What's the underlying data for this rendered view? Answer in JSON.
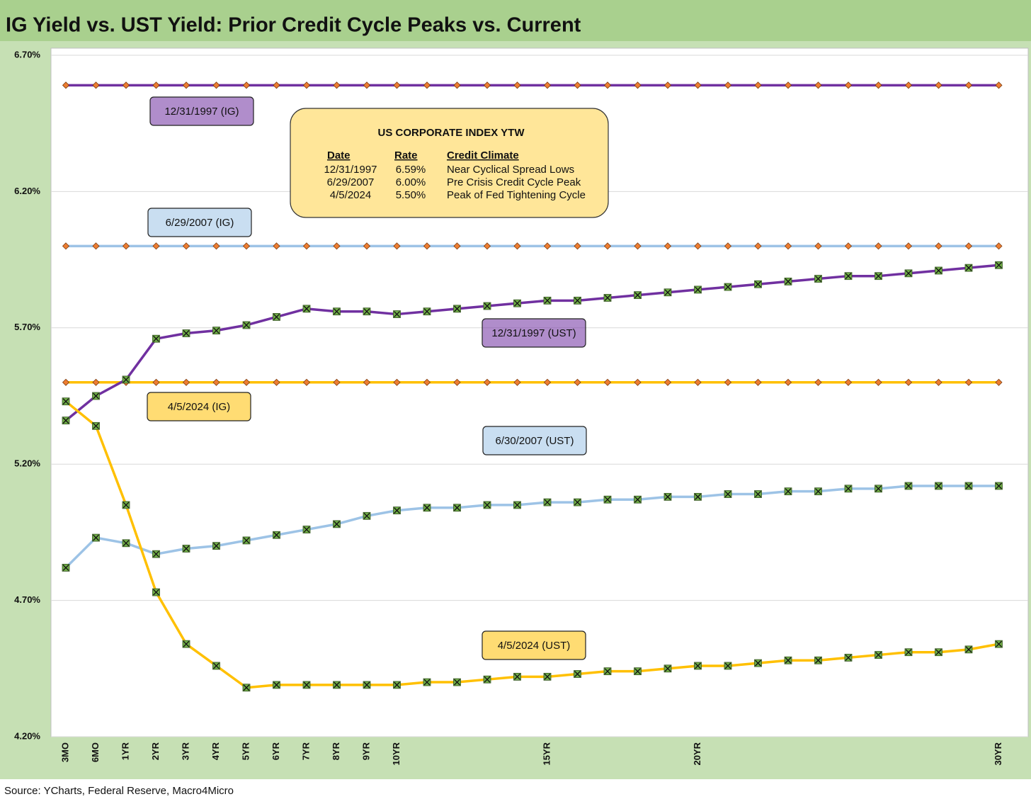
{
  "chart_data": {
    "type": "line",
    "title": "IG Yield vs. UST Yield: Prior Credit Cycle Peaks vs. Current",
    "source": "Source: YCharts, Federal Reserve, Macro4Micro",
    "categories": [
      "3MO",
      "6MO",
      "1YR",
      "2YR",
      "3YR",
      "4YR",
      "5YR",
      "6YR",
      "7YR",
      "8YR",
      "9YR",
      "10YR",
      null,
      null,
      null,
      null,
      "15YR",
      null,
      null,
      null,
      null,
      "20YR",
      null,
      null,
      null,
      null,
      null,
      null,
      null,
      null,
      null,
      "30YR"
    ],
    "ylim": [
      4.2,
      6.7
    ],
    "yticks": [
      {
        "value": 4.2,
        "label": "4.20%"
      },
      {
        "value": 4.7,
        "label": "4.70%"
      },
      {
        "value": 5.2,
        "label": "5.20%"
      },
      {
        "value": 5.7,
        "label": "5.70%"
      },
      {
        "value": 6.2,
        "label": "6.20%"
      },
      {
        "value": 6.7,
        "label": "6.70%"
      }
    ],
    "grid": true,
    "series": [
      {
        "name": "12/31/1997 (IG)",
        "color": "#7030a0",
        "marker": "diamond",
        "marker_color": "#ed7d31",
        "values": [
          6.59,
          6.59,
          6.59,
          6.59,
          6.59,
          6.59,
          6.59,
          6.59,
          6.59,
          6.59,
          6.59,
          6.59,
          6.59,
          6.59,
          6.59,
          6.59,
          6.59,
          6.59,
          6.59,
          6.59,
          6.59,
          6.59,
          6.59,
          6.59,
          6.59,
          6.59,
          6.59,
          6.59,
          6.59,
          6.59,
          6.59,
          6.59
        ]
      },
      {
        "name": "6/29/2007 (IG)",
        "color": "#9dc3e6",
        "marker": "diamond",
        "marker_color": "#ed7d31",
        "values": [
          6.0,
          6.0,
          6.0,
          6.0,
          6.0,
          6.0,
          6.0,
          6.0,
          6.0,
          6.0,
          6.0,
          6.0,
          6.0,
          6.0,
          6.0,
          6.0,
          6.0,
          6.0,
          6.0,
          6.0,
          6.0,
          6.0,
          6.0,
          6.0,
          6.0,
          6.0,
          6.0,
          6.0,
          6.0,
          6.0,
          6.0,
          6.0
        ]
      },
      {
        "name": "4/5/2024 (IG)",
        "color": "#ffc000",
        "marker": "diamond",
        "marker_color": "#ed7d31",
        "values": [
          5.5,
          5.5,
          5.5,
          5.5,
          5.5,
          5.5,
          5.5,
          5.5,
          5.5,
          5.5,
          5.5,
          5.5,
          5.5,
          5.5,
          5.5,
          5.5,
          5.5,
          5.5,
          5.5,
          5.5,
          5.5,
          5.5,
          5.5,
          5.5,
          5.5,
          5.5,
          5.5,
          5.5,
          5.5,
          5.5,
          5.5,
          5.5
        ]
      },
      {
        "name": "12/31/1997 (UST)",
        "color": "#7030a0",
        "marker": "x-square",
        "marker_color": "#70ad47",
        "values": [
          5.36,
          5.45,
          5.51,
          5.66,
          5.68,
          5.69,
          5.71,
          5.74,
          5.77,
          5.76,
          5.76,
          5.75,
          5.76,
          5.77,
          5.78,
          5.79,
          5.8,
          5.8,
          5.81,
          5.82,
          5.83,
          5.84,
          5.85,
          5.86,
          5.87,
          5.88,
          5.89,
          5.89,
          5.9,
          5.91,
          5.92,
          5.93
        ]
      },
      {
        "name": "6/30/2007 (UST)",
        "color": "#9dc3e6",
        "marker": "x-square",
        "marker_color": "#70ad47",
        "values": [
          4.82,
          4.93,
          4.91,
          4.87,
          4.89,
          4.9,
          4.92,
          4.94,
          4.96,
          4.98,
          5.01,
          5.03,
          5.04,
          5.04,
          5.05,
          5.05,
          5.06,
          5.06,
          5.07,
          5.07,
          5.08,
          5.08,
          5.09,
          5.09,
          5.1,
          5.1,
          5.11,
          5.11,
          5.12,
          5.12,
          5.12,
          5.12
        ]
      },
      {
        "name": "4/5/2024 (UST)",
        "color": "#ffc000",
        "marker": "x-square",
        "marker_color": "#70ad47",
        "values": [
          5.43,
          5.34,
          5.05,
          4.73,
          4.54,
          4.46,
          4.38,
          4.39,
          4.39,
          4.39,
          4.39,
          4.39,
          4.4,
          4.4,
          4.41,
          4.42,
          4.42,
          4.43,
          4.44,
          4.44,
          4.45,
          4.46,
          4.46,
          4.47,
          4.48,
          4.48,
          4.49,
          4.5,
          4.51,
          4.51,
          4.52,
          4.54
        ]
      }
    ],
    "annotation_table": {
      "title": "US CORPORATE INDEX YTW",
      "headers": [
        "Date",
        "Rate",
        "Credit Climate"
      ],
      "rows": [
        [
          "12/31/1997",
          "6.59%",
          "Near Cyclical Spread Lows"
        ],
        [
          "6/29/2007",
          "6.00%",
          "Pre Crisis Credit Cycle Peak"
        ],
        [
          "4/5/2024",
          "5.50%",
          "Peak of Fed Tightening Cycle"
        ]
      ]
    }
  }
}
